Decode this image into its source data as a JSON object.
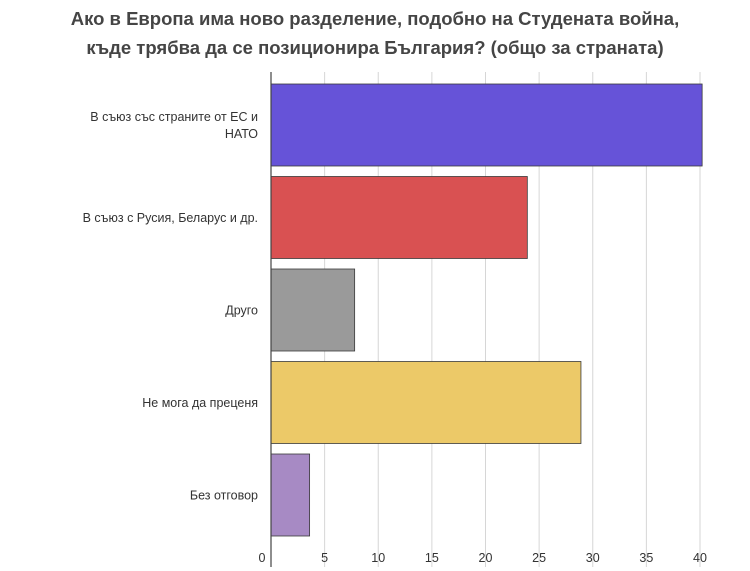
{
  "chart_data": {
    "type": "bar",
    "orientation": "horizontal",
    "title_lines": [
      "Ако в Европа има ново разделение, подобно на Студената война,",
      "къде трябва да се позиционира България? (общо за страната)"
    ],
    "categories": [
      [
        "В съюз със страните от ЕС и",
        "НАТО"
      ],
      [
        "В съюз с Русия, Беларус и др."
      ],
      [
        "Друго"
      ],
      [
        "Не мога да преценя"
      ],
      [
        "Без отговор"
      ]
    ],
    "values": [
      40.2,
      23.9,
      7.8,
      28.9,
      3.6
    ],
    "colors": [
      "#6653d8",
      "#d95152",
      "#9a9a9a",
      "#ecc968",
      "#a78ac4"
    ],
    "xlim": [
      0,
      40
    ],
    "xticks": [
      "0",
      "5",
      "10",
      "15",
      "20",
      "25",
      "30",
      "35",
      "40"
    ],
    "grid": true,
    "legend": "none"
  }
}
